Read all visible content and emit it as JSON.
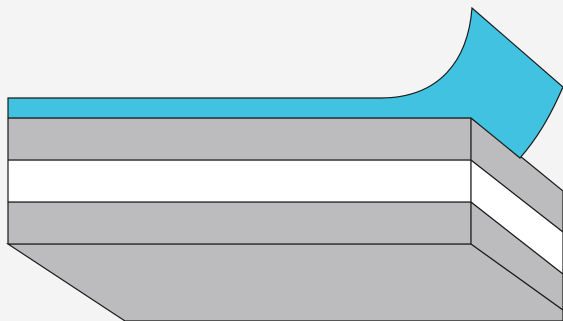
{
  "colors": {
    "background": "#f4f4f4",
    "top_film": "#40c2e0",
    "gray_layer": "#bcbcbe",
    "white_layer": "#ffffff",
    "outline": "#1a1a1a"
  },
  "layers": [
    {
      "name": "peeling-film",
      "color_key": "top_film"
    },
    {
      "name": "upper-gray-layer",
      "color_key": "gray_layer"
    },
    {
      "name": "middle-white-layer",
      "color_key": "white_layer"
    },
    {
      "name": "lower-gray-layer",
      "color_key": "gray_layer"
    },
    {
      "name": "base-layer",
      "color_key": "gray_layer"
    }
  ]
}
